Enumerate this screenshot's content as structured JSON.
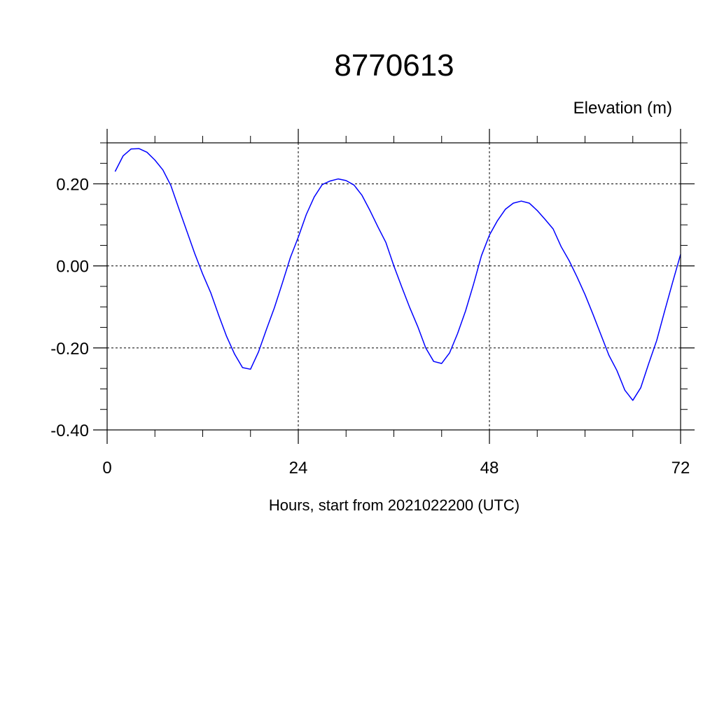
{
  "chart_data": {
    "type": "line",
    "title": "8770613",
    "ylabel": "Elevation (m)",
    "xlabel": "Hours, start from 2021022200 (UTC)",
    "xlim": [
      0,
      72
    ],
    "ylim": [
      -0.4,
      0.3
    ],
    "x_ticks": [
      0,
      24,
      48,
      72
    ],
    "x_tick_labels": [
      "0",
      "24",
      "48",
      "72"
    ],
    "x_minor_step": 6,
    "y_ticks": [
      -0.4,
      -0.2,
      0.0,
      0.2
    ],
    "y_tick_labels": [
      "-0.40",
      "-0.20",
      "0.00",
      "0.20"
    ],
    "y_minor_step": 0.05,
    "grid": true,
    "line_color": "#0000ff",
    "series": [
      {
        "x": [
          1,
          2,
          3,
          4,
          5,
          6,
          7,
          8,
          9,
          10,
          11,
          12,
          13,
          14,
          15,
          16,
          17,
          18,
          19,
          20,
          21,
          22,
          23,
          24,
          25,
          26,
          27,
          28,
          29,
          30,
          31,
          32,
          33,
          34,
          35,
          36,
          37,
          38,
          39,
          40,
          41,
          42,
          43,
          44,
          45,
          46,
          47,
          48,
          49,
          50,
          51,
          52,
          53,
          54,
          55,
          56,
          57,
          58,
          59,
          60,
          61,
          62,
          63,
          64,
          65,
          66,
          67,
          68,
          69,
          70,
          71,
          72
        ],
        "values": [
          0.23,
          0.268,
          0.285,
          0.286,
          0.277,
          0.258,
          0.234,
          0.196,
          0.14,
          0.085,
          0.03,
          -0.02,
          -0.065,
          -0.12,
          -0.172,
          -0.215,
          -0.248,
          -0.252,
          -0.21,
          -0.155,
          -0.102,
          -0.042,
          0.02,
          0.07,
          0.125,
          0.168,
          0.198,
          0.207,
          0.212,
          0.208,
          0.197,
          0.172,
          0.135,
          0.095,
          0.057,
          0.0,
          -0.052,
          -0.102,
          -0.148,
          -0.2,
          -0.233,
          -0.238,
          -0.212,
          -0.165,
          -0.11,
          -0.045,
          0.025,
          0.075,
          0.11,
          0.138,
          0.153,
          0.158,
          0.153,
          0.135,
          0.113,
          0.09,
          0.047,
          0.013,
          -0.027,
          -0.07,
          -0.118,
          -0.168,
          -0.218,
          -0.255,
          -0.303,
          -0.328,
          -0.297,
          -0.238,
          -0.182,
          -0.11,
          -0.04,
          0.028
        ]
      }
    ]
  }
}
